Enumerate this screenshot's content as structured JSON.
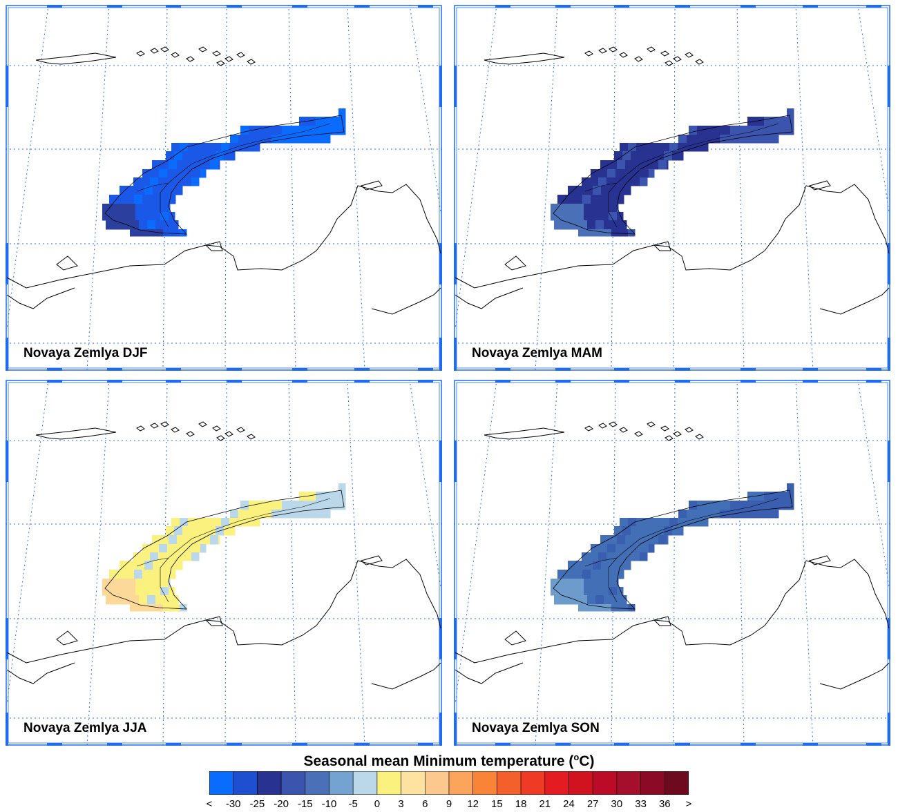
{
  "panels": [
    {
      "label": "Novaya Zemlya DJF",
      "colors": [
        "#1a59e8",
        "#0a6bff",
        "#2a3f9e"
      ]
    },
    {
      "label": "Novaya Zemlya MAM",
      "colors": [
        "#283290",
        "#3b54ad",
        "#4a70b8"
      ]
    },
    {
      "label": "Novaya Zemlya JJA",
      "colors": [
        "#fbf17f",
        "#bbd8ea",
        "#fdd999"
      ]
    },
    {
      "label": "Novaya Zemlya SON",
      "colors": [
        "#426fb5",
        "#3a5fb0",
        "#6d9bcc"
      ]
    }
  ],
  "colorbar": {
    "title": "Seasonal mean Minimum temperature (",
    "title_sup": "o",
    "title_unit": "C)",
    "tick_labels": [
      "<",
      "-30",
      "-25",
      "-20",
      "-15",
      "-10",
      "-5",
      "0",
      "3",
      "6",
      "9",
      "12",
      "15",
      "18",
      "21",
      "24",
      "27",
      "30",
      "33",
      "36",
      ">"
    ],
    "colors": [
      "#0a6bff",
      "#1f4fd1",
      "#283290",
      "#3b54ad",
      "#4a70b8",
      "#74a2d1",
      "#bbd8ea",
      "#fbf17f",
      "#fde2a0",
      "#fcc88e",
      "#fba45b",
      "#f98438",
      "#f4602c",
      "#ef3b25",
      "#e51b22",
      "#d1121f",
      "#bb0b26",
      "#a50f2b",
      "#8b0b26",
      "#6e0a20"
    ]
  }
}
